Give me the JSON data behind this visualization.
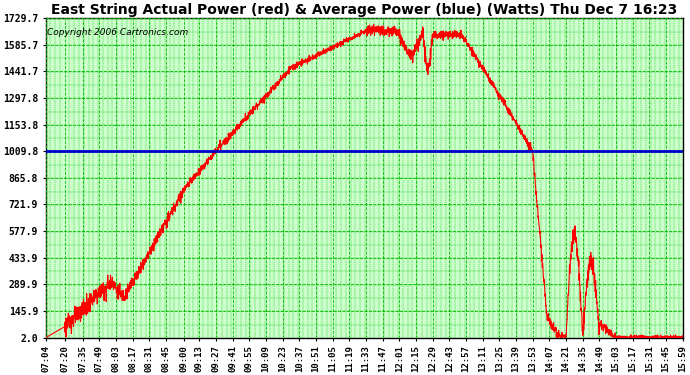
{
  "title": "East String Actual Power (red) & Average Power (blue) (Watts) Thu Dec 7 16:23",
  "copyright": "Copyright 2006 Cartronics.com",
  "yticks": [
    2.0,
    145.9,
    289.9,
    433.9,
    577.9,
    721.9,
    865.8,
    1009.8,
    1153.8,
    1297.8,
    1441.7,
    1585.7,
    1729.7
  ],
  "ylim": [
    2.0,
    1729.7
  ],
  "average_power": 1009.8,
  "bg_color": "#ffffff",
  "plot_bg_color": "#ccffcc",
  "grid_color": "#00bb00",
  "red_color": "#ff0000",
  "blue_color": "#0000cc",
  "title_fontsize": 10,
  "copyright_fontsize": 6.5,
  "xtick_labels": [
    "07:04",
    "07:20",
    "07:35",
    "07:49",
    "08:03",
    "08:17",
    "08:31",
    "08:45",
    "09:00",
    "09:13",
    "09:27",
    "09:41",
    "09:55",
    "10:09",
    "10:23",
    "10:37",
    "10:51",
    "11:05",
    "11:19",
    "11:33",
    "11:47",
    "12:01",
    "12:15",
    "12:29",
    "12:43",
    "12:57",
    "13:11",
    "13:25",
    "13:39",
    "13:53",
    "14:07",
    "14:21",
    "14:35",
    "14:49",
    "15:03",
    "15:17",
    "15:31",
    "15:45",
    "15:59"
  ]
}
